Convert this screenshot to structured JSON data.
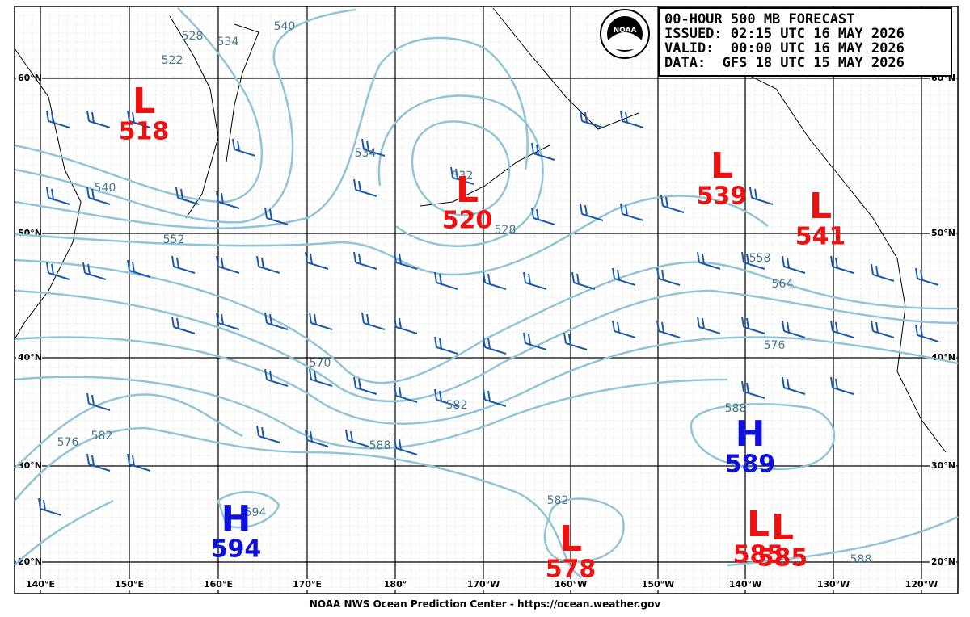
{
  "header": {
    "lines": [
      "00-HOUR 500 MB FORECAST",
      "ISSUED: 02:15 UTC 16 MAY 2026",
      "VALID:  00:00 UTC 16 MAY 2026",
      "DATA:  GFS 18 UTC 15 MAY 2026"
    ]
  },
  "logo": "NOAA",
  "footer": "NOAA NWS Ocean Prediction Center - https://ocean.weather.gov",
  "latitude_labels": [
    "60°N",
    "50°N",
    "40°N",
    "30°N",
    "20°N"
  ],
  "longitude_labels": [
    "140°E",
    "150°E",
    "160°E",
    "170°E",
    "180°",
    "170°W",
    "160°W",
    "150°W",
    "140°W",
    "130°W",
    "120°W"
  ],
  "pressure_centers": [
    {
      "symbol": "L",
      "value": "518"
    },
    {
      "symbol": "L",
      "value": "520"
    },
    {
      "symbol": "L",
      "value": "539"
    },
    {
      "symbol": "L",
      "value": "541"
    },
    {
      "symbol": "H",
      "value": "589"
    },
    {
      "symbol": "H",
      "value": "594"
    },
    {
      "symbol": "L",
      "value": "578"
    },
    {
      "symbol": "L",
      "value": "585"
    },
    {
      "symbol": "L",
      "value": "585"
    }
  ],
  "contour_labels": [
    "540",
    "528",
    "534",
    "522",
    "540",
    "552",
    "534",
    "532",
    "528",
    "558",
    "564",
    "576",
    "570",
    "582",
    "588",
    "576",
    "582",
    "594",
    "582",
    "588",
    "588"
  ]
}
